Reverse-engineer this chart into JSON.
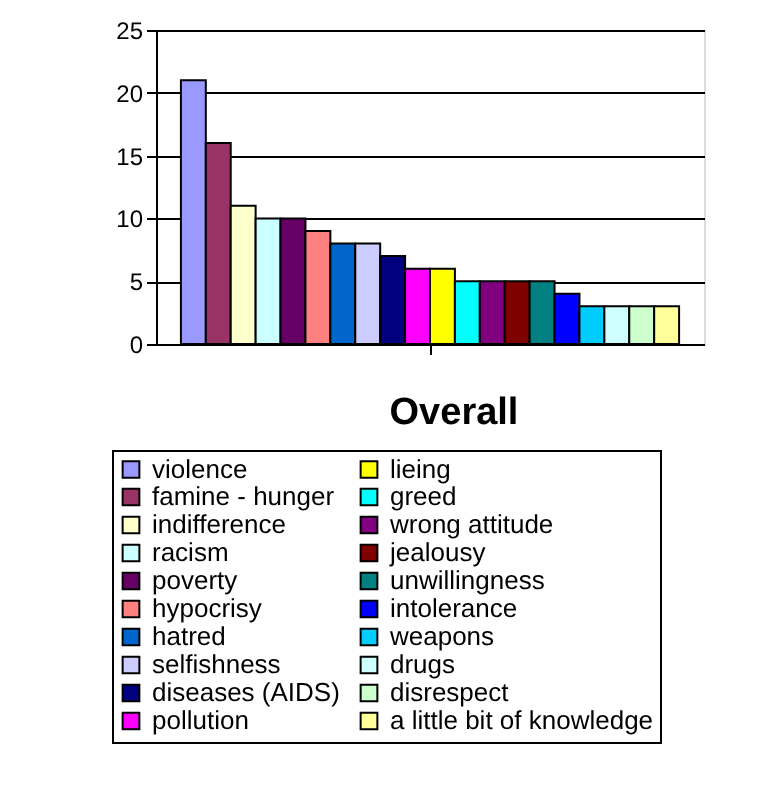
{
  "chart_data": {
    "type": "bar",
    "title": "Overall",
    "categories": [
      null
    ],
    "series": [
      {
        "name": "violence",
        "color": "#9999ff",
        "values": [
          21
        ]
      },
      {
        "name": "famine - hunger",
        "color": "#993366",
        "values": [
          16
        ]
      },
      {
        "name": "indifference",
        "color": "#ffffcc",
        "values": [
          11
        ]
      },
      {
        "name": "racism",
        "color": "#ccffff",
        "values": [
          10
        ]
      },
      {
        "name": "poverty",
        "color": "#660066",
        "values": [
          10
        ]
      },
      {
        "name": "hypocrisy",
        "color": "#ff8080",
        "values": [
          9
        ]
      },
      {
        "name": "hatred",
        "color": "#0066cc",
        "values": [
          8
        ]
      },
      {
        "name": "selfishness",
        "color": "#ccccff",
        "values": [
          8
        ]
      },
      {
        "name": "diseases (AIDS)",
        "color": "#000080",
        "values": [
          7
        ]
      },
      {
        "name": "pollution",
        "color": "#ff00ff",
        "values": [
          6
        ]
      },
      {
        "name": "lieing",
        "color": "#ffff00",
        "values": [
          6
        ]
      },
      {
        "name": "greed",
        "color": "#00ffff",
        "values": [
          5
        ]
      },
      {
        "name": "wrong attitude",
        "color": "#800080",
        "values": [
          5
        ]
      },
      {
        "name": "jealousy",
        "color": "#800000",
        "values": [
          5
        ]
      },
      {
        "name": "unwillingness",
        "color": "#008080",
        "values": [
          5
        ]
      },
      {
        "name": "intolerance",
        "color": "#0000ff",
        "values": [
          4
        ]
      },
      {
        "name": "weapons",
        "color": "#00ccff",
        "values": [
          3
        ]
      },
      {
        "name": "drugs",
        "color": "#ccfffe",
        "values": [
          3
        ]
      },
      {
        "name": "disrespect",
        "color": "#ccffcc",
        "values": [
          3
        ]
      },
      {
        "name": "a little bit of knowledge",
        "color": "#ffff99",
        "values": [
          3
        ]
      }
    ],
    "ylim": [
      0,
      25
    ],
    "yticks": [
      0,
      5,
      10,
      15,
      20,
      25
    ],
    "grid": "y",
    "legend": "bottom",
    "tick_labels": "y"
  }
}
